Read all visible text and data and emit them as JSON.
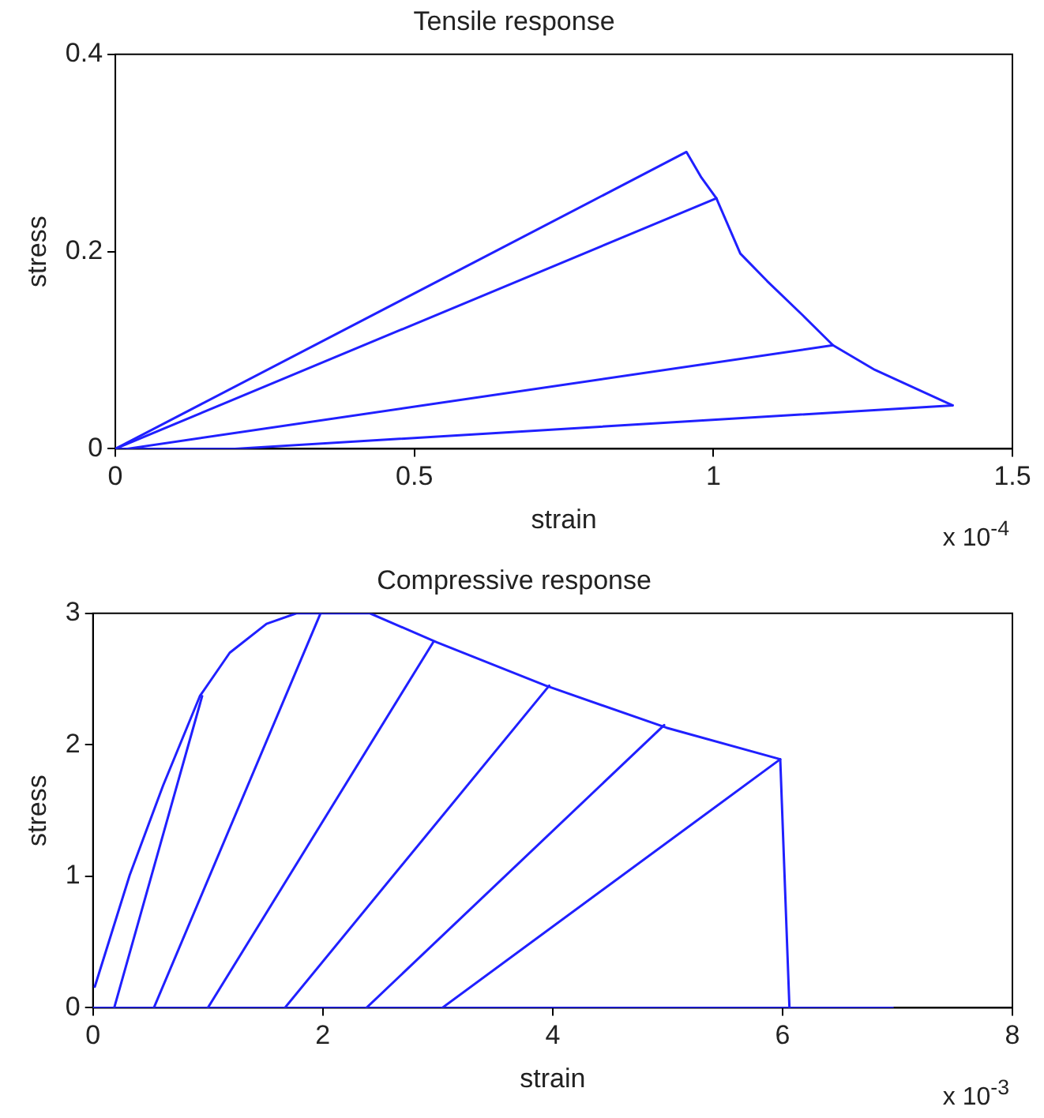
{
  "chart_data": [
    {
      "type": "line",
      "title": "Tensile response",
      "xlabel": "strain",
      "ylabel": "stress",
      "xlim": [
        0,
        1.5
      ],
      "xticks": [
        0,
        0.5,
        1,
        1.5
      ],
      "ylim": [
        0,
        0.4
      ],
      "yticks": [
        0,
        0.2,
        0.4
      ],
      "grid": false,
      "legend": false,
      "annotations": [
        "x 10$^{-4}$"
      ],
      "series": [
        {
          "color": "#2020ff",
          "x": [
            0,
            0.955,
            0.98,
            1.005,
            1.045,
            1.09,
            1.15,
            1.2,
            1.27,
            1.4
          ],
          "values": [
            0,
            0.301,
            0.275,
            0.254,
            0.198,
            0.17,
            0.135,
            0.105,
            0.08,
            0.044
          ]
        },
        {
          "color": "#2020ff",
          "x": [
            1.005,
            0
          ],
          "values": [
            0.254,
            0
          ]
        },
        {
          "color": "#2020ff",
          "x": [
            1.2,
            0.02
          ],
          "values": [
            0.105,
            0
          ]
        },
        {
          "color": "#2020ff",
          "x": [
            1.4,
            0.2,
            0
          ],
          "values": [
            0.044,
            0,
            0
          ]
        }
      ]
    },
    {
      "type": "line",
      "title": "Compressive response",
      "xlabel": "strain",
      "ylabel": "stress",
      "xlim": [
        0,
        8
      ],
      "xticks": [
        0,
        2,
        4,
        6,
        8
      ],
      "ylim": [
        0,
        3
      ],
      "yticks": [
        0,
        1,
        2,
        3
      ],
      "grid": false,
      "legend": false,
      "annotations": [
        "x 10$^{-3}$"
      ],
      "series": [
        {
          "color": "#2020ff",
          "x": [
            0.016,
            0.32,
            0.61,
            0.93,
            1.19,
            1.51,
            1.77,
            2.41,
            2.99,
            3.94,
            4.99,
            5.98,
            6.06,
            6.96
          ],
          "values": [
            0.16,
            1.01,
            1.69,
            2.37,
            2.7,
            2.92,
            3,
            3,
            2.78,
            2.45,
            2.13,
            1.89,
            0,
            0
          ]
        },
        {
          "color": "#2020ff",
          "x": [
            0.95,
            0.185
          ],
          "values": [
            2.37,
            0
          ]
        },
        {
          "color": "#2020ff",
          "x": [
            1.98,
            0.53
          ],
          "values": [
            3,
            0
          ]
        },
        {
          "color": "#2020ff",
          "x": [
            2.96,
            1.0
          ],
          "values": [
            2.78,
            0
          ]
        },
        {
          "color": "#2020ff",
          "x": [
            3.97,
            1.67
          ],
          "values": [
            2.45,
            0
          ]
        },
        {
          "color": "#2020ff",
          "x": [
            4.97,
            2.38
          ],
          "values": [
            2.15,
            0
          ]
        },
        {
          "color": "#2020ff",
          "x": [
            5.98,
            3.04
          ],
          "values": [
            1.89,
            0
          ]
        },
        {
          "color": "#2020ff",
          "x": [
            0,
            6.06
          ],
          "values": [
            0,
            0
          ]
        }
      ]
    }
  ]
}
